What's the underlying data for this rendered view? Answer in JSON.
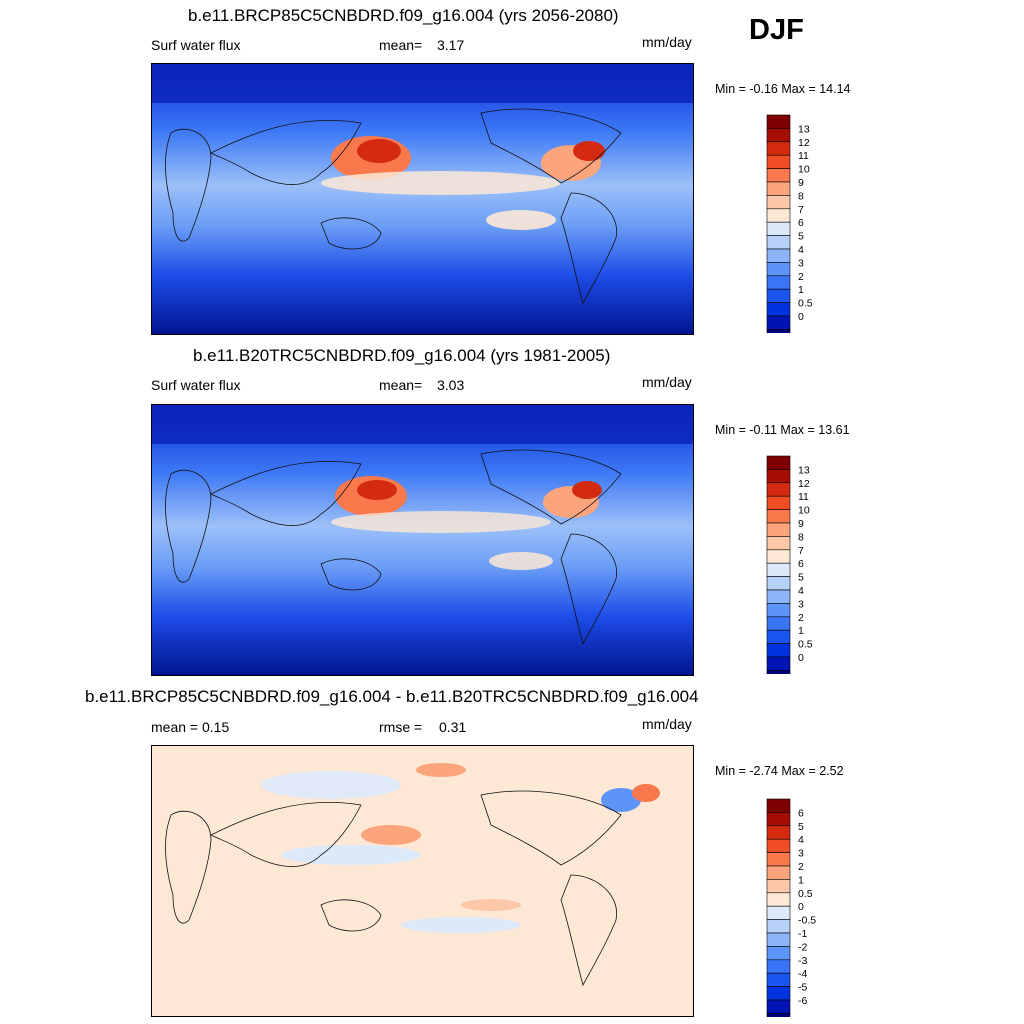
{
  "season": "DJF",
  "panels": [
    {
      "title": "b.e11.BRCP85C5CNBDRD.f09_g16.004 (yrs 2056-2080)",
      "left_label": "Surf water flux",
      "mid_label": "mean=",
      "mid_value": "3.17",
      "units": "mm/day",
      "minmax": "Min =  -0.16 Max =  14.14",
      "colorbar": {
        "colors": [
          "#00007f",
          "#0014b4",
          "#0033e0",
          "#1a55f0",
          "#3a74f6",
          "#5d94f7",
          "#8db4f8",
          "#b8d1f9",
          "#dce9fb",
          "#fde8d6",
          "#fdc8a9",
          "#fca57c",
          "#f9794d",
          "#ee4d26",
          "#d42b10",
          "#a60e03",
          "#7f0000"
        ],
        "labels": [
          "0",
          "0.5",
          "1",
          "2",
          "3",
          "4",
          "5",
          "6",
          "7",
          "8",
          "9",
          "10",
          "11",
          "12",
          "13"
        ]
      }
    },
    {
      "title": "b.e11.B20TRC5CNBDRD.f09_g16.004 (yrs 1981-2005)",
      "left_label": "Surf water flux",
      "mid_label": "mean=",
      "mid_value": "3.03",
      "units": "mm/day",
      "minmax": "Min =  -0.11 Max =  13.61",
      "colorbar": {
        "colors": [
          "#00007f",
          "#0014b4",
          "#0033e0",
          "#1a55f0",
          "#3a74f6",
          "#5d94f7",
          "#8db4f8",
          "#b8d1f9",
          "#dce9fb",
          "#fde8d6",
          "#fdc8a9",
          "#fca57c",
          "#f9794d",
          "#ee4d26",
          "#d42b10",
          "#a60e03",
          "#7f0000"
        ],
        "labels": [
          "0",
          "0.5",
          "1",
          "2",
          "3",
          "4",
          "5",
          "6",
          "7",
          "8",
          "9",
          "10",
          "11",
          "12",
          "13"
        ]
      }
    },
    {
      "title": "b.e11.BRCP85C5CNBDRD.f09_g16.004 - b.e11.B20TRC5CNBDRD.f09_g16.004",
      "left_label": "mean =   0.15",
      "mid_label": "rmse =",
      "mid_value": "0.31",
      "units": "mm/day",
      "minmax": "Min =  -2.74 Max =   2.52",
      "colorbar": {
        "colors": [
          "#00007f",
          "#0014b4",
          "#0033e0",
          "#1a55f0",
          "#3a74f6",
          "#5d94f7",
          "#8db4f8",
          "#b8d1f9",
          "#dce9fb",
          "#fde8d6",
          "#fdc8a9",
          "#fca57c",
          "#f9794d",
          "#ee4d26",
          "#d42b10",
          "#a60e03",
          "#7f0000"
        ],
        "labels": [
          "-6",
          "-5",
          "-4",
          "-3",
          "-2",
          "-1",
          "-0.5",
          "0",
          "0.5",
          "1",
          "2",
          "3",
          "4",
          "5",
          "6"
        ]
      }
    }
  ],
  "chart_data": [
    {
      "type": "heatmap",
      "title": "b.e11.BRCP85C5CNBDRD.f09_g16.004 (yrs 2056-2080)",
      "variable": "Surf water flux",
      "units": "mm/day",
      "mean": 3.17,
      "min": -0.16,
      "max": 14.14,
      "contour_levels": [
        0,
        0.5,
        1,
        2,
        3,
        4,
        5,
        6,
        7,
        8,
        9,
        10,
        11,
        12,
        13
      ]
    },
    {
      "type": "heatmap",
      "title": "b.e11.B20TRC5CNBDRD.f09_g16.004 (yrs 1981-2005)",
      "variable": "Surf water flux",
      "units": "mm/day",
      "mean": 3.03,
      "min": -0.11,
      "max": 13.61,
      "contour_levels": [
        0,
        0.5,
        1,
        2,
        3,
        4,
        5,
        6,
        7,
        8,
        9,
        10,
        11,
        12,
        13
      ]
    },
    {
      "type": "heatmap",
      "title": "b.e11.BRCP85C5CNBDRD.f09_g16.004 - b.e11.B20TRC5CNBDRD.f09_g16.004",
      "units": "mm/day",
      "mean": 0.15,
      "rmse": 0.31,
      "min": -2.74,
      "max": 2.52,
      "contour_levels": [
        -6,
        -5,
        -4,
        -3,
        -2,
        -1,
        -0.5,
        0,
        0.5,
        1,
        2,
        3,
        4,
        5,
        6
      ]
    }
  ]
}
